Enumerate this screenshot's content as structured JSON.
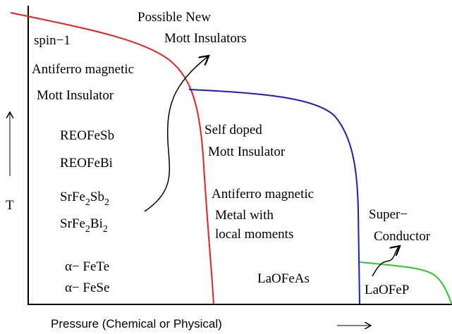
{
  "axis_labels": {
    "y": "T",
    "x": "Pressure (Chemical or Physical)"
  },
  "regions": {
    "top": [
      "Possible New",
      "Mott Insulators"
    ],
    "left": [
      "spin−1",
      "Antiferro magnetic",
      "Mott Insulator"
    ],
    "middle": [
      "Self doped",
      "Mott  Insulator"
    ],
    "metal": [
      "Antiferro magnetic",
      "Metal  with",
      "local moments"
    ],
    "superconductor": [
      "Super−",
      "Conductor"
    ]
  },
  "materials": {
    "left": [
      "REOFeSb",
      "REOFeBi"
    ],
    "srfe_sb": [
      "SrFe",
      "2",
      "Sb",
      "2"
    ],
    "srfe_bi": [
      "SrFe",
      "2",
      "Bi",
      "2"
    ],
    "alpha": [
      "α− FeTe",
      "α− FeSe"
    ],
    "middle": "LaOFeAs",
    "right": "LaOFeP"
  }
}
